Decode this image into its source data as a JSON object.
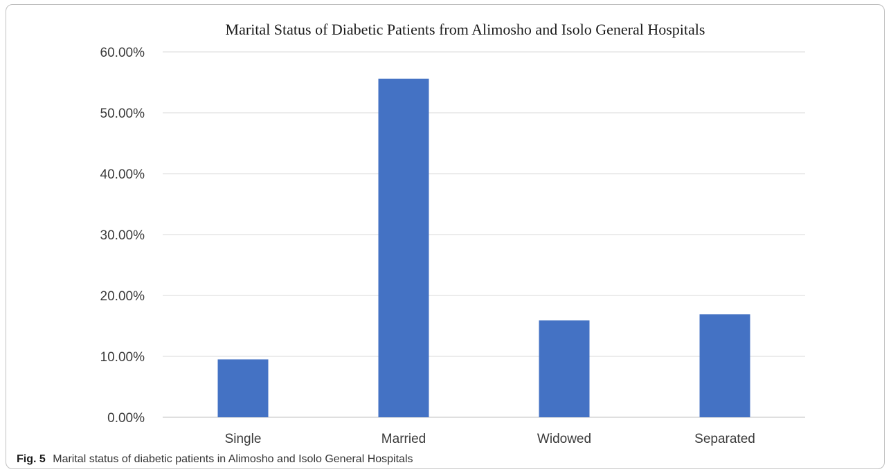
{
  "colors": {
    "bar": "#4472c4",
    "grid": "#d9d9d9",
    "axis": "#bfbfbf"
  },
  "chart_data": {
    "type": "bar",
    "title": "Marital  Status of Diabetic Patients from Alimosho  and Isolo General Hospitals",
    "categories": [
      "Single",
      "Married",
      "Widowed",
      "Separated"
    ],
    "values": [
      9.5,
      55.6,
      15.9,
      16.9
    ],
    "ylim": [
      0,
      60
    ],
    "yticks": [
      "0.00%",
      "10.00%",
      "20.00%",
      "30.00%",
      "40.00%",
      "50.00%",
      "60.00%"
    ],
    "xlabel": "",
    "ylabel": "",
    "grid": true,
    "legend": "none"
  },
  "caption": {
    "label": "Fig. 5",
    "text": "Marital status of diabetic patients in Alimosho and Isolo General Hospitals"
  }
}
